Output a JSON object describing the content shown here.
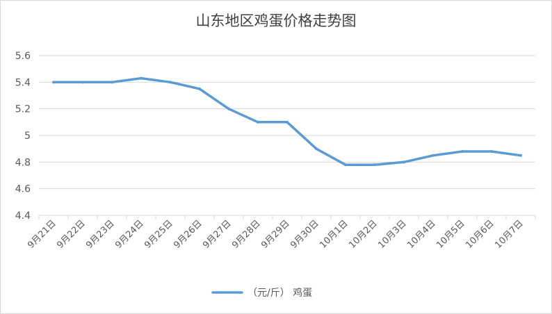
{
  "chart_data": {
    "type": "line",
    "title": "山东地区鸡蛋价格走势图",
    "xlabel": "",
    "ylabel": "",
    "categories": [
      "9月21日",
      "9月22日",
      "9月23日",
      "9月24日",
      "9月25日",
      "9月26日",
      "9月27日",
      "9月28日",
      "9月29日",
      "9月30日",
      "10月1日",
      "10月2日",
      "10月3日",
      "10月4日",
      "10月5日",
      "10月6日",
      "10月7日"
    ],
    "series": [
      {
        "name": "（元/斤） 鸡蛋",
        "values": [
          5.4,
          5.4,
          5.4,
          5.43,
          5.4,
          5.35,
          5.2,
          5.1,
          5.1,
          4.9,
          4.78,
          4.78,
          4.8,
          4.85,
          4.88,
          4.88,
          4.85
        ]
      }
    ],
    "ylim": [
      4.4,
      5.6
    ],
    "yticks": [
      4.4,
      4.6,
      4.8,
      5,
      5.2,
      5.4,
      5.6
    ],
    "ytick_labels": [
      "4.4",
      "4.6",
      "4.8",
      "5",
      "5.2",
      "5.4",
      "5.6"
    ],
    "grid": true,
    "legend_position": "bottom",
    "line_color": "#5b9bd5",
    "grid_color": "#d9d9d9",
    "text_color": "#595959"
  }
}
